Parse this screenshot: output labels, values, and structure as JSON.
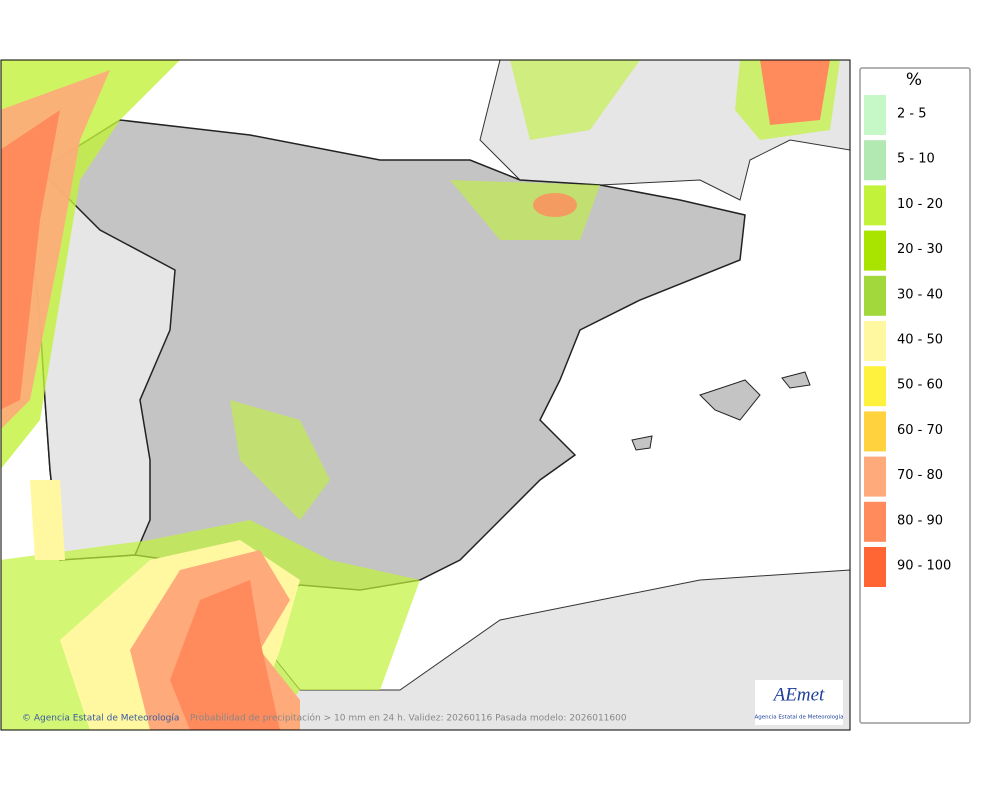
{
  "legend": {
    "title": "%",
    "items": [
      {
        "label": "2 - 5",
        "color": "#c6f7c6"
      },
      {
        "label": "5 - 10",
        "color": "#b2e8b2"
      },
      {
        "label": "10 - 20",
        "color": "#c2f23a"
      },
      {
        "label": "20 - 30",
        "color": "#a8e400"
      },
      {
        "label": "30 - 40",
        "color": "#a2d83c"
      },
      {
        "label": "40 - 50",
        "color": "#fff8a0"
      },
      {
        "label": "50 - 60",
        "color": "#fff23e"
      },
      {
        "label": "60 - 70",
        "color": "#ffd23e"
      },
      {
        "label": "70 - 80",
        "color": "#ffaa7a"
      },
      {
        "label": "80 - 90",
        "color": "#ff8a5c"
      },
      {
        "label": "90 - 100",
        "color": "#ff6634"
      }
    ]
  },
  "footer": {
    "credit": "© Agencia Estatal de Meteorología",
    "caption": "Probabilidad de precipitación > 10 mm en 24 h. Validez: 20260116 Pasada modelo: 2026011600"
  },
  "logo": {
    "name": "AEmet",
    "subtitle": "Agencia Estatal de Meteorología"
  }
}
